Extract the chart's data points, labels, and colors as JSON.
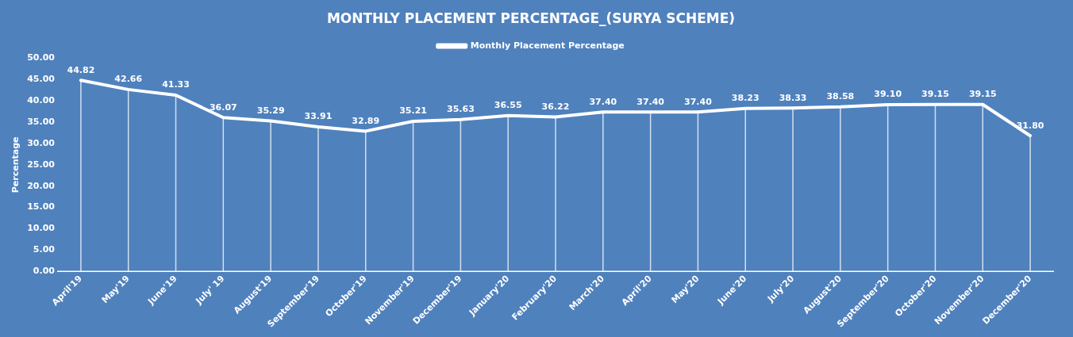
{
  "chart_data": {
    "type": "line",
    "title": "MONTHLY PLACEMENT PERCENTAGE_(SURYA SCHEME)",
    "ylabel": "Percentage",
    "categories": [
      "April'19",
      "May'19",
      "June'19",
      "July' 19",
      "August'19",
      "September'19",
      "October'19",
      "November'19",
      "December'19",
      "January'20",
      "February'20",
      "March'20",
      "April'20",
      "May'20",
      "June'20",
      "July'20",
      "August'20",
      "September'20",
      "October'20",
      "November'20",
      "December'20"
    ],
    "series": [
      {
        "name": "Monthly Placement Percentage",
        "color": "#ffffff",
        "values": [
          44.82,
          42.66,
          41.33,
          36.07,
          35.29,
          33.91,
          32.89,
          35.21,
          35.63,
          36.55,
          36.22,
          37.4,
          37.4,
          37.4,
          38.23,
          38.33,
          38.58,
          39.1,
          39.15,
          39.15,
          31.8
        ],
        "value_labels": [
          "44.82",
          "42.66",
          "41.33",
          "36.07",
          "35.29",
          "33.91",
          "32.89",
          "35.21",
          "35.63",
          "36.55",
          "36.22",
          "37.40",
          "37.40",
          "37.40",
          "38.23",
          "38.33",
          "38.58",
          "39.10",
          "39.15",
          "39.15",
          "31.80"
        ]
      }
    ],
    "ylim": [
      0,
      50
    ],
    "yticks": [
      {
        "value": 0,
        "label": "0.00"
      },
      {
        "value": 5,
        "label": "5.00"
      },
      {
        "value": 10,
        "label": "10.00"
      },
      {
        "value": 15,
        "label": "15.00"
      },
      {
        "value": 20,
        "label": "20.00"
      },
      {
        "value": 25,
        "label": "25.00"
      },
      {
        "value": 30,
        "label": "30.00"
      },
      {
        "value": 35,
        "label": "35.00"
      },
      {
        "value": 40,
        "label": "40.00"
      },
      {
        "value": 45,
        "label": "45.00"
      },
      {
        "value": 50,
        "label": "50.00"
      }
    ],
    "grid": false,
    "legend": "top",
    "marker": "none",
    "line_style": "solid"
  }
}
